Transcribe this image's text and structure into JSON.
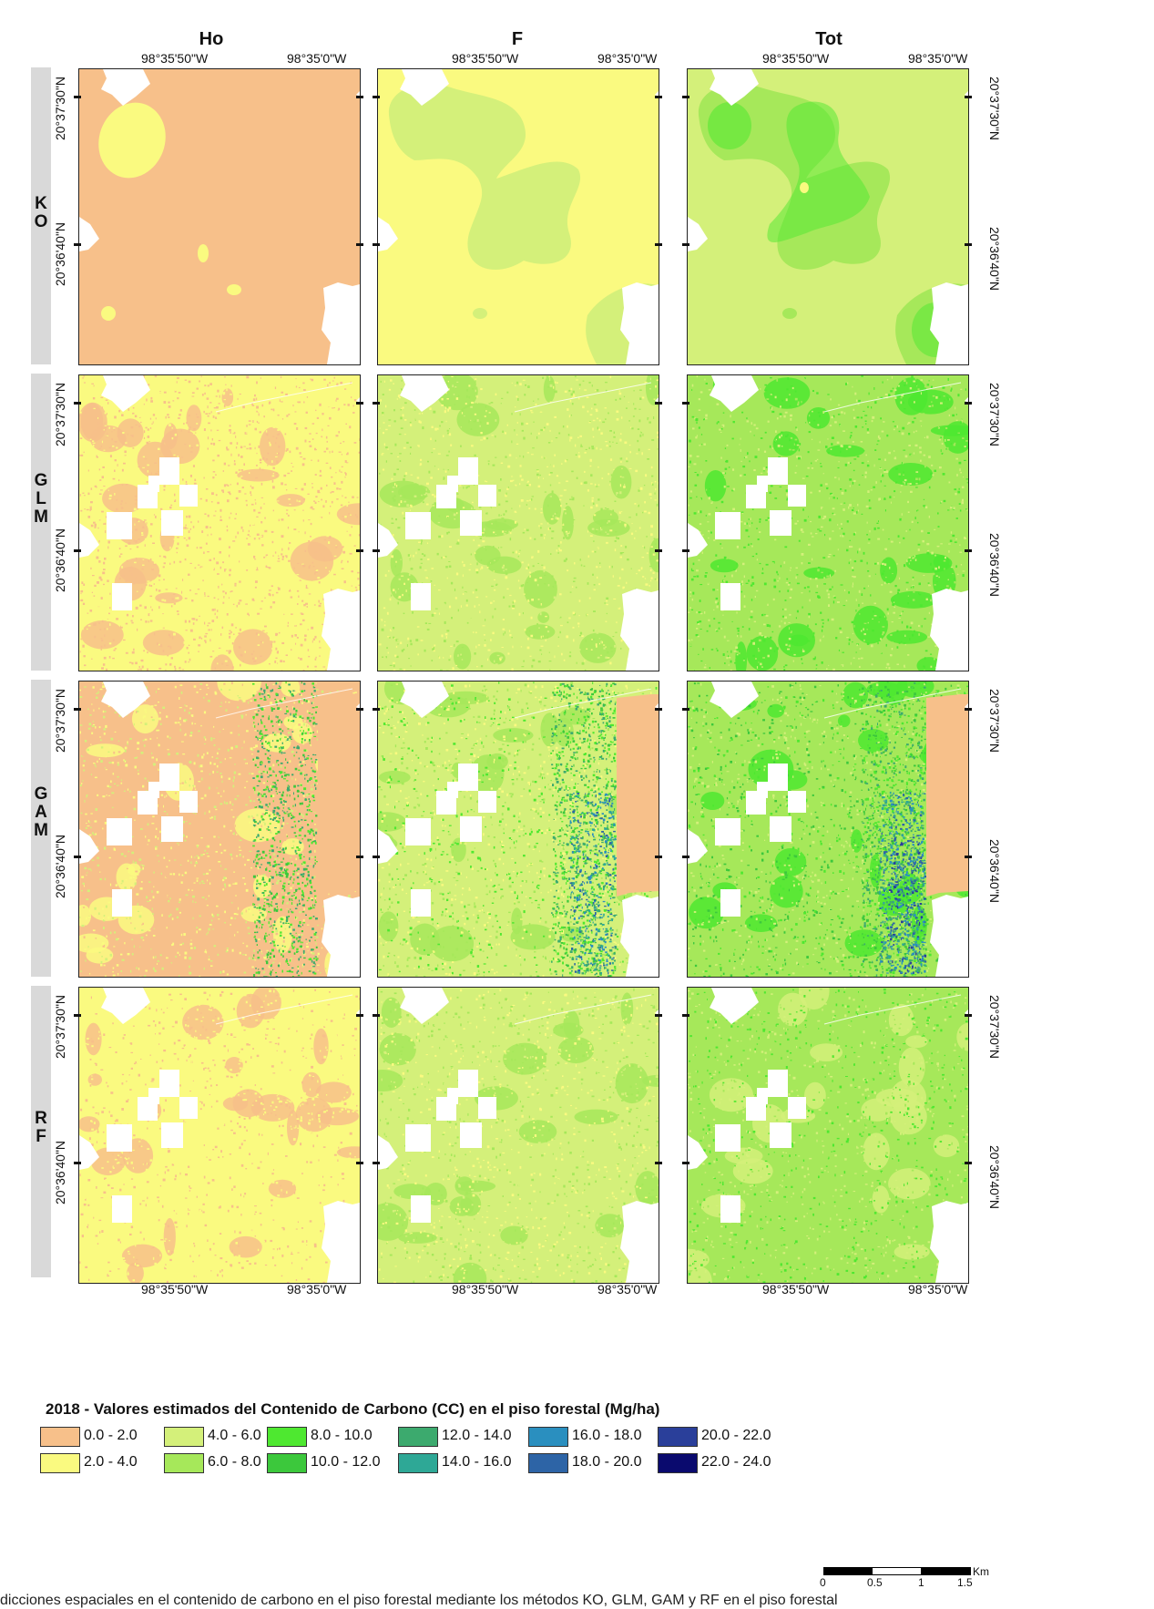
{
  "columns": [
    "Ho",
    "F",
    "Tot"
  ],
  "rows": [
    "KO",
    "GLM",
    "GAM",
    "RF"
  ],
  "coords": {
    "lon_left": "98°35'50\"W",
    "lon_right": "98°35'0\"W",
    "lat_top": "20°37'30\"N",
    "lat_bottom": "20°36'40\"N"
  },
  "legend": {
    "title": "2018 - Valores estimados del Contenido de Carbono (CC) en el piso forestal (Mg/ha)",
    "classes": [
      {
        "label": "0.0 - 2.0",
        "color": "#f7c08a"
      },
      {
        "label": "2.0 - 4.0",
        "color": "#fafa80"
      },
      {
        "label": "4.0 - 6.0",
        "color": "#d4f07a"
      },
      {
        "label": "6.0 - 8.0",
        "color": "#a6e85a"
      },
      {
        "label": "8.0 - 10.0",
        "color": "#4ee830"
      },
      {
        "label": "10.0 - 12.0",
        "color": "#3cc83c"
      },
      {
        "label": "12.0 - 14.0",
        "color": "#3caa6e"
      },
      {
        "label": "14.0 - 16.0",
        "color": "#2ea896"
      },
      {
        "label": "16.0 - 18.0",
        "color": "#2a8fbf"
      },
      {
        "label": "18.0 - 20.0",
        "color": "#2d64a6"
      },
      {
        "label": "20.0 - 22.0",
        "color": "#2a3f9a"
      },
      {
        "label": "22.0 - 24.0",
        "color": "#0a0a6e"
      }
    ]
  },
  "scale": {
    "ticks": [
      "0",
      "0.5",
      "1",
      "1.5"
    ],
    "unit": "Km"
  },
  "caption": "dicciones espaciales en el contenido de carbono en el piso forestal mediante los métodos KO, GLM, GAM y RF en el piso forestal"
}
